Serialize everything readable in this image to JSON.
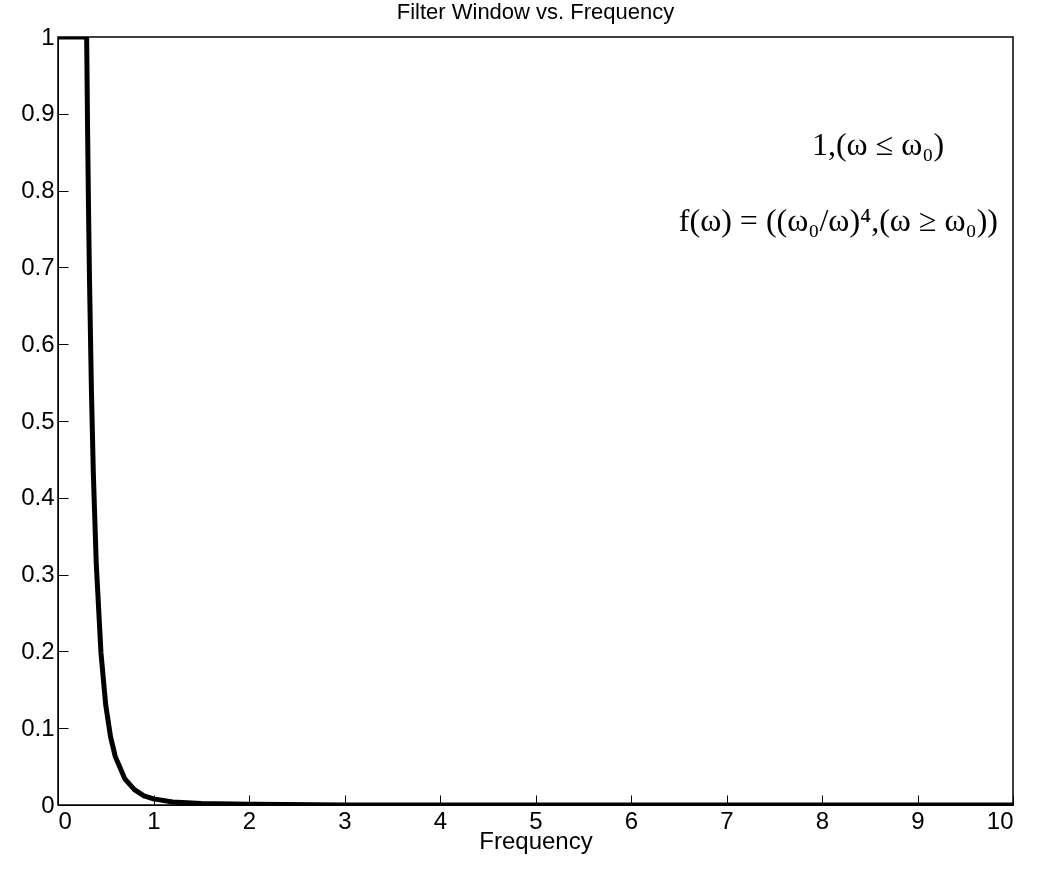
{
  "chart_data": {
    "type": "line",
    "title": "Filter Window vs. Frequency",
    "xlabel": "Frequency",
    "x": [
      0,
      0.1,
      0.2,
      0.3,
      0.31,
      0.32,
      0.33,
      0.35,
      0.37,
      0.4,
      0.45,
      0.5,
      0.55,
      0.6,
      0.7,
      0.8,
      0.9,
      1,
      1.2,
      1.5,
      2,
      3,
      5,
      10
    ],
    "series": [
      {
        "color": "#000000",
        "values": [
          1,
          1,
          1,
          1,
          0.877,
          0.772,
          0.683,
          0.54,
          0.432,
          0.316,
          0.198,
          0.13,
          0.089,
          0.063,
          0.034,
          0.02,
          0.012,
          0.008,
          0.004,
          0.002,
          0.001,
          0,
          0,
          0
        ]
      }
    ],
    "xlim": [
      0,
      10
    ],
    "xticks": [
      0,
      1,
      2,
      3,
      4,
      5,
      6,
      7,
      8,
      9,
      10
    ],
    "ylim": [
      0,
      1
    ],
    "yticks": [
      0,
      0.1,
      0.2,
      0.3,
      0.4,
      0.5,
      0.6,
      0.7,
      0.8,
      0.9,
      1
    ],
    "grid": false,
    "marker": "none",
    "line_style": "solid",
    "annotations": [
      "1,(ω ≤ ω₀)",
      "f(ω) = ((ω₀/ω)⁴,(ω ≥ ω₀))"
    ]
  }
}
